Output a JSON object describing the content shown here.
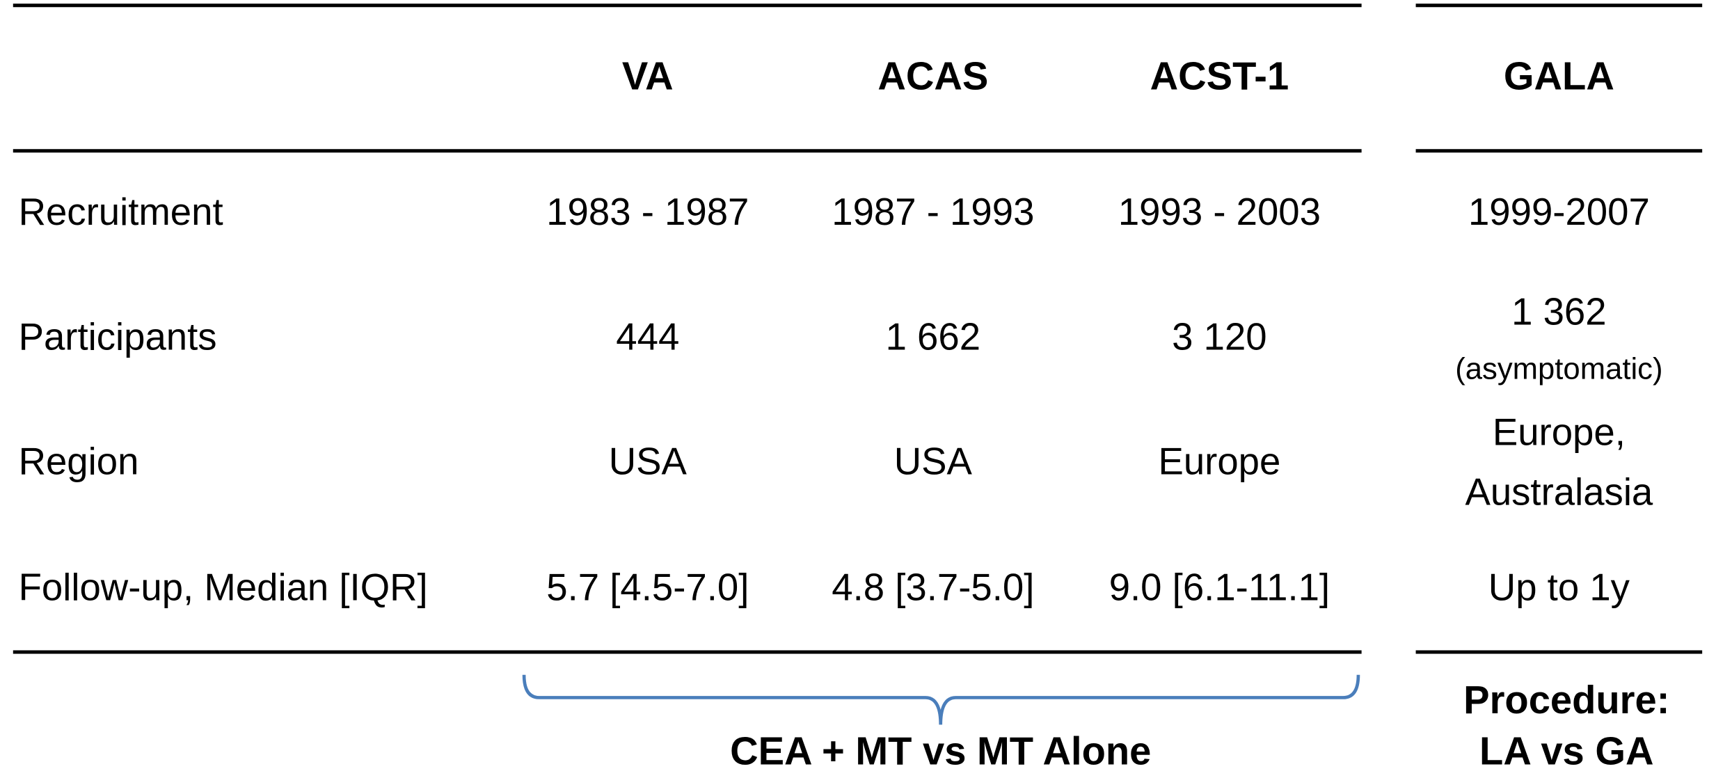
{
  "table": {
    "columns": [
      "VA",
      "ACAS",
      "ACST-1",
      "GALA"
    ],
    "rows": [
      {
        "label": "Recruitment",
        "cells": [
          "1983 - 1987",
          "1987 - 1993",
          "1993 - 2003",
          "1999-2007"
        ]
      },
      {
        "label": "Participants",
        "cells": [
          "444",
          "1 662",
          "3 120",
          [
            "1 362",
            "(asymptomatic)"
          ]
        ]
      },
      {
        "label": "Region",
        "cells": [
          "USA",
          "USA",
          "Europe",
          [
            "Europe,",
            "Australasia"
          ]
        ]
      },
      {
        "label": "Follow-up, Median [IQR]",
        "cells": [
          "5.7 [4.5-7.0]",
          "4.8 [3.7-5.0]",
          "9.0 [6.1-11.1]",
          "Up to 1y"
        ]
      }
    ]
  },
  "footer": {
    "bracket_label": "CEA + MT vs MT Alone",
    "gala_label": [
      "Procedure:",
      "LA vs GA"
    ]
  }
}
